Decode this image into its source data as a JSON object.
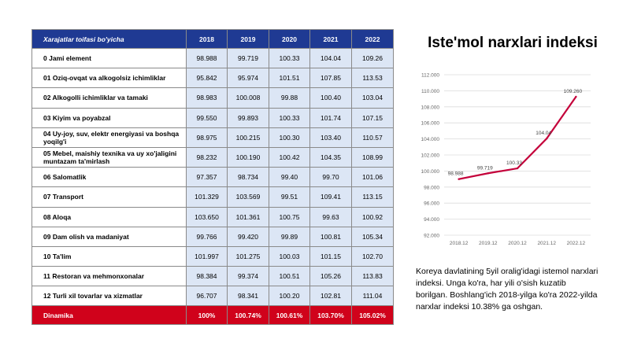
{
  "table": {
    "header": [
      "Xarajatlar toifasi bo'yicha",
      "2018",
      "2019",
      "2020",
      "2021",
      "2022"
    ],
    "rows": [
      {
        "category": "0 Jami element",
        "values": [
          "98.988",
          "99.719",
          "100.33",
          "104.04",
          "109.26"
        ]
      },
      {
        "category": "01 Oziq-ovqat va alkogolsiz ichimliklar",
        "values": [
          "95.842",
          "95.974",
          "101.51",
          "107.85",
          "113.53"
        ]
      },
      {
        "category": "02 Alkogolli ichimliklar va tamaki",
        "values": [
          "98.983",
          "100.008",
          "99.88",
          "100.40",
          "103.04"
        ]
      },
      {
        "category": "03 Kiyim va poyabzal",
        "values": [
          "99.550",
          "99.893",
          "100.33",
          "101.74",
          "107.15"
        ]
      },
      {
        "category": "04 Uy-joy, suv, elektr energiyasi va boshqa yoqilg'i",
        "values": [
          "98.975",
          "100.215",
          "100.30",
          "103.40",
          "110.57"
        ]
      },
      {
        "category": "05 Mebel, maishiy texnika va uy xo'jaligini muntazam ta'mirlash",
        "values": [
          "98.232",
          "100.190",
          "100.42",
          "104.35",
          "108.99"
        ]
      },
      {
        "category": "06 Salomatlik",
        "values": [
          "97.357",
          "98.734",
          "99.40",
          "99.70",
          "101.06"
        ]
      },
      {
        "category": "07 Transport",
        "values": [
          "101.329",
          "103.569",
          "99.51",
          "109.41",
          "113.15"
        ]
      },
      {
        "category": "08 Aloqa",
        "values": [
          "103.650",
          "101.361",
          "100.75",
          "99.63",
          "100.92"
        ]
      },
      {
        "category": "09 Dam olish va madaniyat",
        "values": [
          "99.766",
          "99.420",
          "99.89",
          "100.81",
          "105.34"
        ]
      },
      {
        "category": "10 Ta'lim",
        "values": [
          "101.997",
          "101.275",
          "100.03",
          "101.15",
          "102.70"
        ]
      },
      {
        "category": "11 Restoran va mehmonxonalar",
        "values": [
          "98.384",
          "99.374",
          "100.51",
          "105.26",
          "113.83"
        ]
      },
      {
        "category": "12 Turli xil tovarlar va xizmatlar",
        "values": [
          "96.707",
          "98.341",
          "100.20",
          "102.81",
          "111.04"
        ]
      }
    ],
    "footer": {
      "category": "Dinamika",
      "values": [
        "100%",
        "100.74%",
        "100.61%",
        "103.70%",
        "105.02%"
      ]
    }
  },
  "chart_data": {
    "type": "line",
    "title": "Iste'mol narxlari indeksi",
    "categories": [
      "2018.12",
      "2019.12",
      "2020.12",
      "2021.12",
      "2022.12"
    ],
    "series": [
      {
        "values": [
          98.988,
          99.719,
          100.33,
          104.04,
          109.26
        ]
      }
    ],
    "data_labels": [
      "98.988",
      "99.719",
      "100.33",
      "104.04",
      "109.260"
    ],
    "yticks": [
      "112.000",
      "110.000",
      "108.000",
      "106.000",
      "104.000",
      "102.000",
      "100.000",
      "98.000",
      "96.000",
      "94.000",
      "92.000"
    ],
    "ylim": [
      92,
      112
    ],
    "grid": true,
    "line_color": "#c4003a"
  },
  "description": "Koreya davlatining 5yil oralig'idagi istemol narxlari indeksi. Unga ko'ra, har yili o'sish kuzatib borilgan. Boshlang'ich 2018-yilga ko'ra 2022-yilda narxlar indeksi 10.38% ga oshgan."
}
